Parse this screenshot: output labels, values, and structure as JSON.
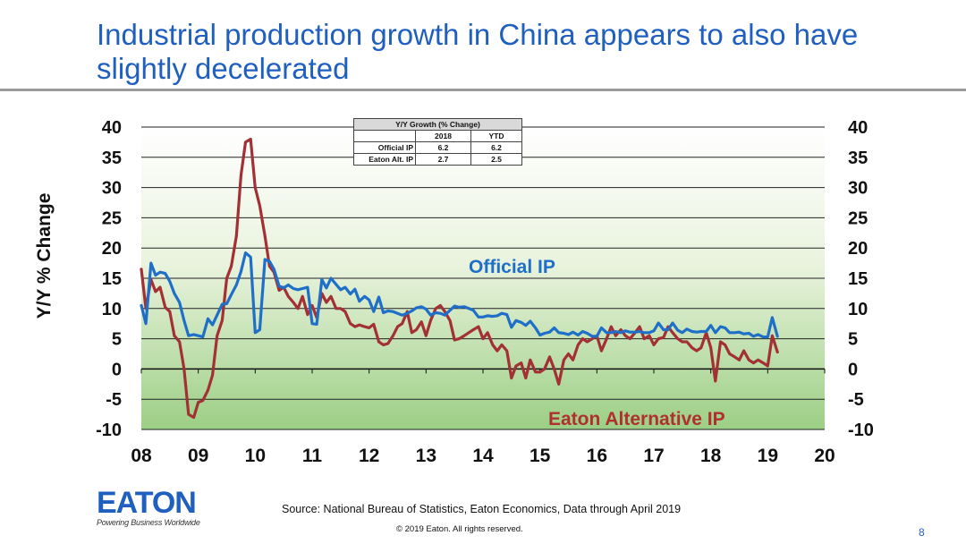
{
  "slide": {
    "title": "Industrial production growth in China appears to also have slightly decelerated",
    "source": "Source: National Bureau of Statistics, Eaton Economics, Data through April 2019",
    "copyright": "© 2019 Eaton. All rights reserved.",
    "page_number": "8",
    "logo": {
      "word": "EATON",
      "tagline": "Powering Business Worldwide",
      "color": "#1f5fbf"
    }
  },
  "growth_table": {
    "title": "Y/Y Growth (% Change)",
    "columns": [
      "",
      "2018",
      "YTD"
    ],
    "rows": [
      {
        "label": "Official IP",
        "values": [
          "6.2",
          "6.2"
        ]
      },
      {
        "label": "Eaton Alt. IP",
        "values": [
          "2.7",
          "2.5"
        ]
      }
    ]
  },
  "chart_data": {
    "type": "line",
    "title": "",
    "xlabel": "",
    "ylabel": "Y/Y % Change",
    "ylim": [
      -10,
      40
    ],
    "xlim": [
      2008,
      2020
    ],
    "x_ticks": [
      "08",
      "09",
      "10",
      "11",
      "12",
      "13",
      "14",
      "15",
      "16",
      "17",
      "18",
      "19",
      "20"
    ],
    "y_ticks": [
      "40",
      "35",
      "30",
      "25",
      "20",
      "15",
      "10",
      "5",
      "0",
      "-5",
      "-10"
    ],
    "grid": true,
    "background": "green-gradient",
    "annotations": [
      {
        "text": "Official IP",
        "color": "#1f6fc9"
      },
      {
        "text": "Eaton Alternative IP",
        "color": "#b03030"
      }
    ],
    "series": [
      {
        "name": "Official IP",
        "color": "#1f6fc9",
        "points": [
          [
            2008.0,
            10.5
          ],
          [
            2008.08,
            7.5
          ],
          [
            2008.17,
            17.5
          ],
          [
            2008.25,
            15.5
          ],
          [
            2008.33,
            16.0
          ],
          [
            2008.42,
            15.8
          ],
          [
            2008.5,
            14.5
          ],
          [
            2008.58,
            12.5
          ],
          [
            2008.67,
            11.0
          ],
          [
            2008.75,
            8.0
          ],
          [
            2008.83,
            5.5
          ],
          [
            2008.92,
            5.7
          ],
          [
            2009.0,
            5.5
          ],
          [
            2009.08,
            5.3
          ],
          [
            2009.17,
            8.3
          ],
          [
            2009.25,
            7.3
          ],
          [
            2009.33,
            8.9
          ],
          [
            2009.42,
            10.7
          ],
          [
            2009.5,
            10.8
          ],
          [
            2009.58,
            12.3
          ],
          [
            2009.67,
            13.9
          ],
          [
            2009.75,
            16.1
          ],
          [
            2009.83,
            19.2
          ],
          [
            2009.92,
            18.5
          ],
          [
            2010.0,
            6.0
          ],
          [
            2010.08,
            6.5
          ],
          [
            2010.17,
            18.1
          ],
          [
            2010.25,
            17.8
          ],
          [
            2010.33,
            16.5
          ],
          [
            2010.42,
            13.7
          ],
          [
            2010.5,
            13.4
          ],
          [
            2010.58,
            13.9
          ],
          [
            2010.67,
            13.3
          ],
          [
            2010.75,
            13.1
          ],
          [
            2010.83,
            13.3
          ],
          [
            2010.92,
            13.5
          ],
          [
            2011.0,
            7.5
          ],
          [
            2011.08,
            7.4
          ],
          [
            2011.17,
            14.8
          ],
          [
            2011.25,
            13.4
          ],
          [
            2011.33,
            15.0
          ],
          [
            2011.42,
            14.0
          ],
          [
            2011.5,
            13.1
          ],
          [
            2011.58,
            13.5
          ],
          [
            2011.67,
            12.4
          ],
          [
            2011.75,
            13.2
          ],
          [
            2011.83,
            11.2
          ],
          [
            2011.92,
            12.0
          ],
          [
            2012.0,
            11.4
          ],
          [
            2012.08,
            9.5
          ],
          [
            2012.17,
            11.9
          ],
          [
            2012.25,
            9.3
          ],
          [
            2012.33,
            9.6
          ],
          [
            2012.42,
            9.5
          ],
          [
            2012.5,
            9.2
          ],
          [
            2012.58,
            8.9
          ],
          [
            2012.67,
            9.2
          ],
          [
            2012.75,
            9.6
          ],
          [
            2012.83,
            10.1
          ],
          [
            2012.92,
            10.3
          ],
          [
            2013.0,
            9.9
          ],
          [
            2013.08,
            8.9
          ],
          [
            2013.17,
            9.3
          ],
          [
            2013.25,
            9.2
          ],
          [
            2013.33,
            8.9
          ],
          [
            2013.42,
            9.7
          ],
          [
            2013.5,
            10.4
          ],
          [
            2013.58,
            10.2
          ],
          [
            2013.67,
            10.3
          ],
          [
            2013.75,
            10.0
          ],
          [
            2013.83,
            9.7
          ],
          [
            2013.92,
            8.6
          ],
          [
            2014.0,
            8.6
          ],
          [
            2014.08,
            8.8
          ],
          [
            2014.17,
            8.7
          ],
          [
            2014.25,
            8.8
          ],
          [
            2014.33,
            9.2
          ],
          [
            2014.42,
            9.0
          ],
          [
            2014.5,
            6.9
          ],
          [
            2014.58,
            8.0
          ],
          [
            2014.67,
            7.7
          ],
          [
            2014.75,
            7.2
          ],
          [
            2014.83,
            7.9
          ],
          [
            2014.92,
            6.8
          ],
          [
            2015.0,
            5.6
          ],
          [
            2015.08,
            5.9
          ],
          [
            2015.17,
            6.1
          ],
          [
            2015.25,
            6.8
          ],
          [
            2015.33,
            6.0
          ],
          [
            2015.42,
            5.9
          ],
          [
            2015.5,
            5.7
          ],
          [
            2015.58,
            6.1
          ],
          [
            2015.67,
            5.6
          ],
          [
            2015.75,
            6.2
          ],
          [
            2015.83,
            5.9
          ],
          [
            2015.92,
            5.4
          ],
          [
            2016.0,
            5.4
          ],
          [
            2016.08,
            6.8
          ],
          [
            2016.17,
            6.0
          ],
          [
            2016.25,
            6.0
          ],
          [
            2016.33,
            6.2
          ],
          [
            2016.42,
            6.0
          ],
          [
            2016.5,
            6.3
          ],
          [
            2016.58,
            6.1
          ],
          [
            2016.67,
            6.1
          ],
          [
            2016.75,
            6.2
          ],
          [
            2016.83,
            6.0
          ],
          [
            2016.92,
            6.0
          ],
          [
            2017.0,
            6.3
          ],
          [
            2017.08,
            7.6
          ],
          [
            2017.17,
            6.5
          ],
          [
            2017.25,
            6.5
          ],
          [
            2017.33,
            7.6
          ],
          [
            2017.42,
            6.4
          ],
          [
            2017.5,
            6.0
          ],
          [
            2017.58,
            6.6
          ],
          [
            2017.67,
            6.2
          ],
          [
            2017.75,
            6.1
          ],
          [
            2017.83,
            6.2
          ],
          [
            2017.92,
            6.2
          ],
          [
            2018.0,
            7.2
          ],
          [
            2018.08,
            6.0
          ],
          [
            2018.17,
            7.0
          ],
          [
            2018.25,
            6.8
          ],
          [
            2018.33,
            6.0
          ],
          [
            2018.42,
            6.0
          ],
          [
            2018.5,
            6.1
          ],
          [
            2018.58,
            5.8
          ],
          [
            2018.67,
            5.9
          ],
          [
            2018.75,
            5.4
          ],
          [
            2018.83,
            5.7
          ],
          [
            2018.92,
            5.3
          ],
          [
            2019.0,
            5.3
          ],
          [
            2019.08,
            8.5
          ],
          [
            2019.17,
            5.4
          ]
        ]
      },
      {
        "name": "Eaton Alternative IP",
        "color": "#a33035",
        "points": [
          [
            2008.0,
            16.5
          ],
          [
            2008.08,
            10.0
          ],
          [
            2008.17,
            14.8
          ],
          [
            2008.25,
            12.8
          ],
          [
            2008.33,
            13.5
          ],
          [
            2008.42,
            10.2
          ],
          [
            2008.5,
            9.5
          ],
          [
            2008.58,
            5.5
          ],
          [
            2008.67,
            4.5
          ],
          [
            2008.75,
            0.0
          ],
          [
            2008.83,
            -7.5
          ],
          [
            2008.92,
            -8.0
          ],
          [
            2009.0,
            -5.5
          ],
          [
            2009.08,
            -5.2
          ],
          [
            2009.17,
            -3.5
          ],
          [
            2009.25,
            -1.0
          ],
          [
            2009.33,
            5.5
          ],
          [
            2009.42,
            8.0
          ],
          [
            2009.5,
            15.0
          ],
          [
            2009.58,
            17.0
          ],
          [
            2009.67,
            22.0
          ],
          [
            2009.75,
            32.0
          ],
          [
            2009.83,
            37.5
          ],
          [
            2009.92,
            38.0
          ],
          [
            2010.0,
            30.0
          ],
          [
            2010.08,
            27.0
          ],
          [
            2010.17,
            22.0
          ],
          [
            2010.25,
            17.0
          ],
          [
            2010.33,
            16.0
          ],
          [
            2010.42,
            13.0
          ],
          [
            2010.5,
            13.5
          ],
          [
            2010.58,
            12.0
          ],
          [
            2010.67,
            11.0
          ],
          [
            2010.75,
            10.0
          ],
          [
            2010.83,
            12.0
          ],
          [
            2010.92,
            9.0
          ],
          [
            2011.0,
            10.5
          ],
          [
            2011.08,
            8.5
          ],
          [
            2011.17,
            12.5
          ],
          [
            2011.25,
            11.0
          ],
          [
            2011.33,
            12.0
          ],
          [
            2011.42,
            10.0
          ],
          [
            2011.5,
            10.0
          ],
          [
            2011.58,
            9.5
          ],
          [
            2011.67,
            7.5
          ],
          [
            2011.75,
            7.0
          ],
          [
            2011.83,
            7.3
          ],
          [
            2011.92,
            7.0
          ],
          [
            2012.0,
            6.8
          ],
          [
            2012.08,
            7.4
          ],
          [
            2012.17,
            4.5
          ],
          [
            2012.25,
            4.0
          ],
          [
            2012.33,
            4.2
          ],
          [
            2012.42,
            5.5
          ],
          [
            2012.5,
            7.0
          ],
          [
            2012.58,
            7.5
          ],
          [
            2012.67,
            9.5
          ],
          [
            2012.75,
            6.0
          ],
          [
            2012.83,
            6.5
          ],
          [
            2012.92,
            7.8
          ],
          [
            2013.0,
            5.5
          ],
          [
            2013.08,
            8.0
          ],
          [
            2013.17,
            10.0
          ],
          [
            2013.25,
            10.5
          ],
          [
            2013.33,
            9.5
          ],
          [
            2013.42,
            8.0
          ],
          [
            2013.5,
            4.8
          ],
          [
            2013.58,
            5.0
          ],
          [
            2013.67,
            5.5
          ],
          [
            2013.75,
            6.0
          ],
          [
            2013.83,
            6.5
          ],
          [
            2013.92,
            7.0
          ],
          [
            2014.0,
            5.0
          ],
          [
            2014.08,
            6.0
          ],
          [
            2014.17,
            4.0
          ],
          [
            2014.25,
            3.0
          ],
          [
            2014.33,
            4.0
          ],
          [
            2014.42,
            3.0
          ],
          [
            2014.5,
            -1.5
          ],
          [
            2014.58,
            0.5
          ],
          [
            2014.67,
            1.0
          ],
          [
            2014.75,
            -1.5
          ],
          [
            2014.83,
            1.5
          ],
          [
            2014.92,
            -0.5
          ],
          [
            2015.0,
            -0.5
          ],
          [
            2015.08,
            0.0
          ],
          [
            2015.17,
            2.0
          ],
          [
            2015.25,
            0.0
          ],
          [
            2015.33,
            -2.5
          ],
          [
            2015.42,
            1.5
          ],
          [
            2015.5,
            2.5
          ],
          [
            2015.58,
            1.5
          ],
          [
            2015.67,
            4.0
          ],
          [
            2015.75,
            5.0
          ],
          [
            2015.83,
            4.5
          ],
          [
            2015.92,
            5.0
          ],
          [
            2016.0,
            5.5
          ],
          [
            2016.08,
            3.0
          ],
          [
            2016.17,
            5.0
          ],
          [
            2016.25,
            7.0
          ],
          [
            2016.33,
            5.5
          ],
          [
            2016.42,
            6.5
          ],
          [
            2016.5,
            5.5
          ],
          [
            2016.58,
            5.0
          ],
          [
            2016.67,
            6.0
          ],
          [
            2016.75,
            7.0
          ],
          [
            2016.83,
            5.0
          ],
          [
            2016.92,
            5.5
          ],
          [
            2017.0,
            4.0
          ],
          [
            2017.08,
            5.0
          ],
          [
            2017.17,
            5.2
          ],
          [
            2017.25,
            7.0
          ],
          [
            2017.33,
            6.0
          ],
          [
            2017.42,
            5.0
          ],
          [
            2017.5,
            4.5
          ],
          [
            2017.58,
            4.5
          ],
          [
            2017.67,
            3.5
          ],
          [
            2017.75,
            3.0
          ],
          [
            2017.83,
            3.5
          ],
          [
            2017.92,
            6.0
          ],
          [
            2018.0,
            3.5
          ],
          [
            2018.08,
            -2.0
          ],
          [
            2018.17,
            4.5
          ],
          [
            2018.25,
            4.0
          ],
          [
            2018.33,
            2.5
          ],
          [
            2018.42,
            2.0
          ],
          [
            2018.5,
            1.5
          ],
          [
            2018.58,
            3.0
          ],
          [
            2018.67,
            1.5
          ],
          [
            2018.75,
            1.0
          ],
          [
            2018.83,
            1.5
          ],
          [
            2018.92,
            1.0
          ],
          [
            2019.0,
            0.5
          ],
          [
            2019.08,
            5.5
          ],
          [
            2019.17,
            2.8
          ]
        ]
      }
    ]
  }
}
